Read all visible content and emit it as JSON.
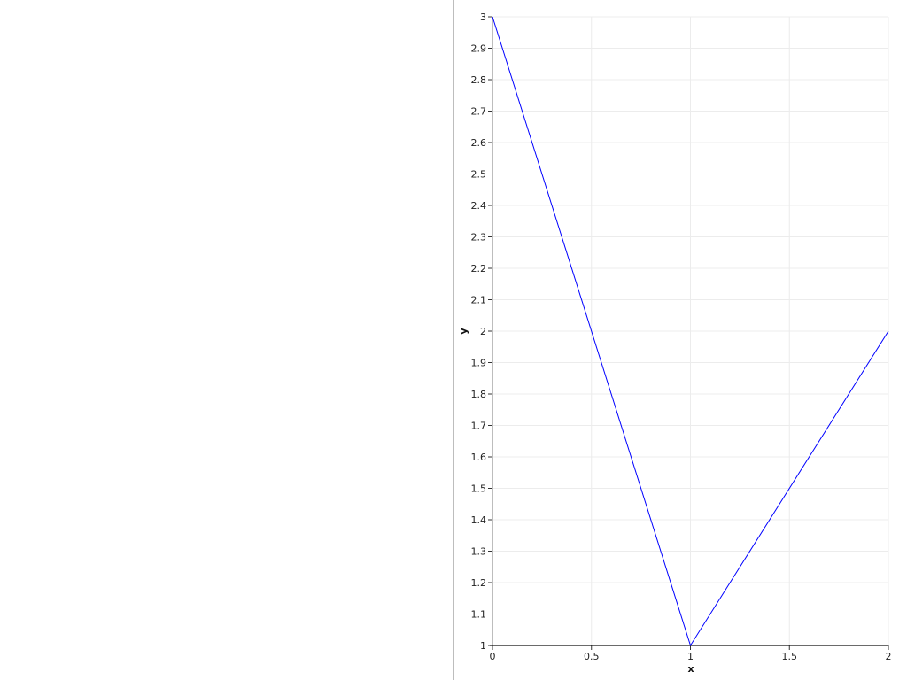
{
  "chart_data": {
    "type": "line",
    "title": "",
    "xlabel": "x",
    "ylabel": "y",
    "xlim": [
      0,
      2
    ],
    "ylim": [
      1,
      3
    ],
    "xticks": [
      0,
      0.5,
      1,
      1.5,
      2
    ],
    "xtick_labels": [
      "0",
      "0.5",
      "1",
      "1.5",
      "2"
    ],
    "yticks": [
      1,
      1.1,
      1.2,
      1.3,
      1.4,
      1.5,
      1.6,
      1.7,
      1.8,
      1.9,
      2,
      2.1,
      2.2,
      2.3,
      2.4,
      2.5,
      2.6,
      2.7,
      2.8,
      2.9,
      3
    ],
    "ytick_labels": [
      "1",
      "1.1",
      "1.2",
      "1.3",
      "1.4",
      "1.5",
      "1.6",
      "1.7",
      "1.8",
      "1.9",
      "2",
      "2.1",
      "2.2",
      "2.3",
      "2.4",
      "2.5",
      "2.6",
      "2.7",
      "2.8",
      "2.9",
      "3"
    ],
    "grid": true,
    "series": [
      {
        "x": [
          0,
          1,
          2
        ],
        "y": [
          3,
          1,
          2
        ],
        "color": "#0000ff"
      }
    ]
  }
}
